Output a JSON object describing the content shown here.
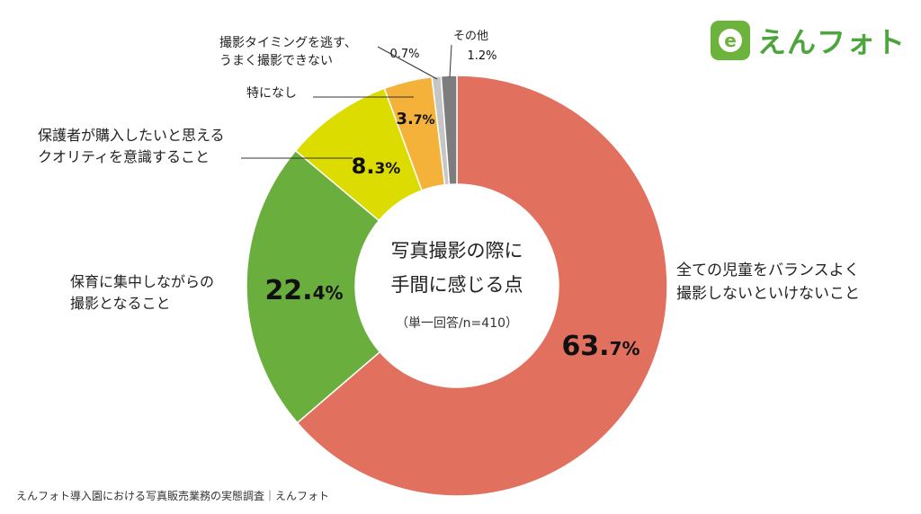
{
  "brand": {
    "name": "えんフォト",
    "mark_letter": "e",
    "color": "#6cb33e"
  },
  "source": "えんフォト導入園における写真販売業務の実態調査｜えんフォト",
  "chart_data": {
    "type": "pie",
    "style": "donut",
    "title_lines": [
      "写真撮影の際に",
      "手間に感じる点"
    ],
    "subtitle": "（単一回答/n=410）",
    "slices": [
      {
        "label_lines": [
          "全ての児童をバランスよく",
          "撮影しないといけないこと"
        ],
        "value": 63.7,
        "num": "63.",
        "dec": "7%",
        "color": "#e1705e"
      },
      {
        "label_lines": [
          "保育に集中しながらの",
          "撮影となること"
        ],
        "value": 22.4,
        "num": "22.",
        "dec": "4%",
        "color": "#6aae3e"
      },
      {
        "label_lines": [
          "保護者が購入したいと思える",
          "クオリティを意識すること"
        ],
        "value": 8.3,
        "num": "8.",
        "dec": "3%",
        "color": "#dcdc00"
      },
      {
        "label_lines": [
          "特になし"
        ],
        "value": 3.7,
        "num": "3.",
        "dec": "7%",
        "color": "#f4b23b"
      },
      {
        "label_lines": [
          "撮影タイミングを逃す、",
          "うまく撮影できない"
        ],
        "value": 0.7,
        "num": "",
        "dec": "0.7%",
        "color": "#c6c6c6"
      },
      {
        "label_lines": [
          "その他"
        ],
        "value": 1.2,
        "num": "",
        "dec": "1.2%",
        "color": "#7d7d7d"
      }
    ]
  }
}
